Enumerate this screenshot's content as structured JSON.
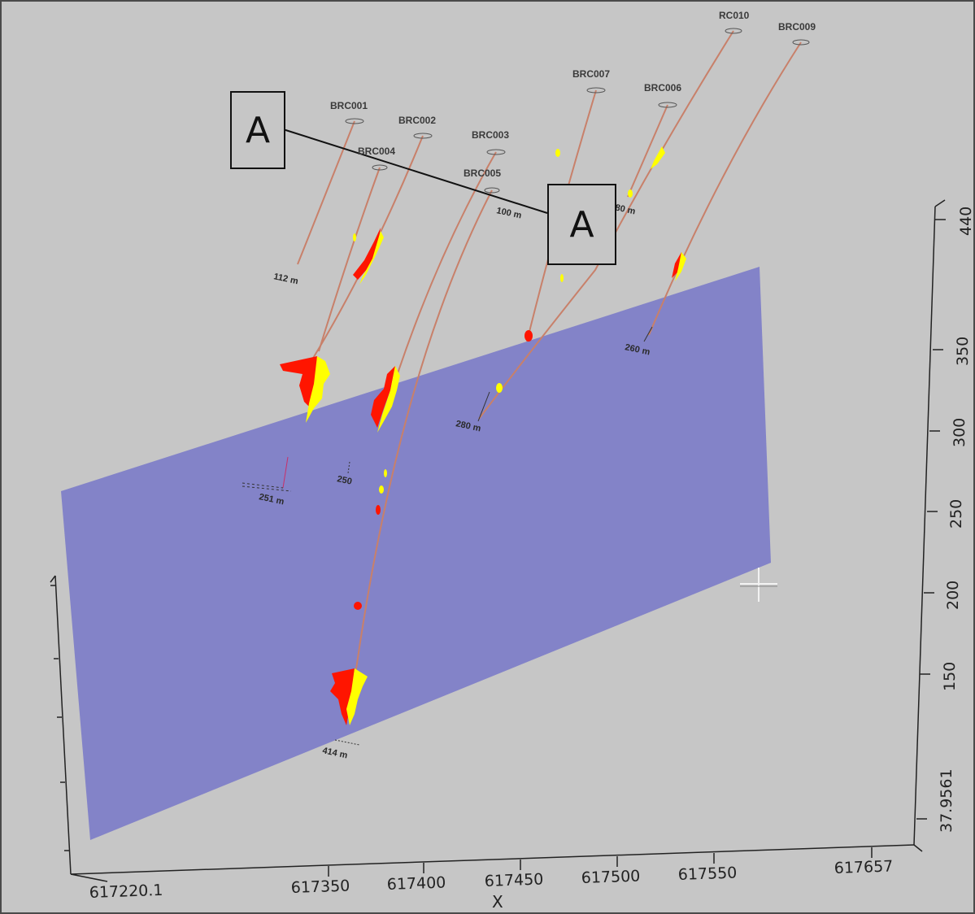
{
  "colors": {
    "background": "#c6c6c6",
    "section_plane": "#8383c8",
    "trace": "#c8806a",
    "assay_high": "#ff1500",
    "assay_low": "#ffff00",
    "axis": "#222222"
  },
  "section": {
    "marker_left": "A",
    "marker_right": "A"
  },
  "drillholes": [
    {
      "name": "BRC001",
      "end_depth": "112 m"
    },
    {
      "name": "BRC002",
      "end_depth": "251 m"
    },
    {
      "name": "BRC003",
      "end_depth": "280 m"
    },
    {
      "name": "BRC004",
      "end_depth": ""
    },
    {
      "name": "BRC005",
      "end_depth": "414 m"
    },
    {
      "name": "BRC006",
      "end_depth": "180 m"
    },
    {
      "name": "BRC007",
      "end_depth": "100 m"
    },
    {
      "name": "RC010",
      "end_depth": "260 m"
    },
    {
      "name": "BRC009",
      "end_depth": ""
    }
  ],
  "extra_depth_label": "250",
  "axes": {
    "x_title": "X",
    "x_ticks": [
      "617220.1",
      "617350",
      "617400",
      "617450",
      "617500",
      "617550",
      "617657"
    ],
    "z_ticks": [
      "37.9561",
      "150",
      "200",
      "250",
      "300",
      "350",
      "440"
    ],
    "y_ticks": [
      "",
      "",
      "",
      "",
      ""
    ]
  }
}
